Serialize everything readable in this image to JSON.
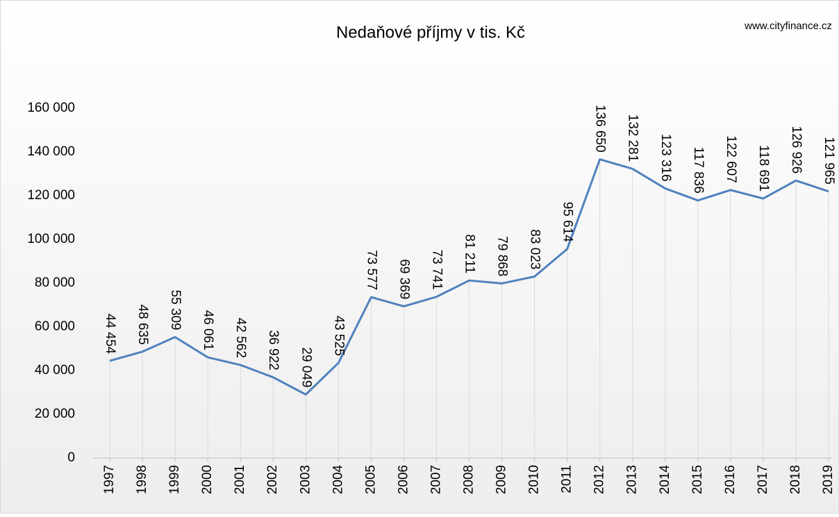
{
  "chart_data": {
    "type": "line",
    "title": "Nedaňové příjmy v tis. Kč",
    "annotation": "www.cityfinance.cz",
    "categories": [
      "1997",
      "1998",
      "1999",
      "2000",
      "2001",
      "2002",
      "2003",
      "2004",
      "2005",
      "2006",
      "2007",
      "2008",
      "2009",
      "2010",
      "2011",
      "2012",
      "2013",
      "2014",
      "2015",
      "2016",
      "2017",
      "2018",
      "2019"
    ],
    "series": [
      {
        "name": "Nedaňové příjmy",
        "color": "#4f81bd",
        "values": [
          44454,
          48635,
          55309,
          46061,
          42562,
          36922,
          29049,
          43525,
          73577,
          69369,
          73741,
          81211,
          79868,
          83023,
          95614,
          136650,
          132281,
          123316,
          117836,
          122607,
          118691,
          126926,
          121965
        ],
        "value_labels": [
          "44 454",
          "48 635",
          "55 309",
          "46 061",
          "42 562",
          "36 922",
          "29 049",
          "43 525",
          "73 577",
          "69 369",
          "73 741",
          "81 211",
          "79 868",
          "83 023",
          "95 614",
          "136 650",
          "132 281",
          "123 316",
          "117 836",
          "122 607",
          "118 691",
          "126 926",
          "121 965"
        ]
      }
    ],
    "ylim": [
      0,
      160000
    ],
    "yticks": [
      {
        "value": 0,
        "label": "0"
      },
      {
        "value": 20000,
        "label": "20 000"
      },
      {
        "value": 40000,
        "label": "40 000"
      },
      {
        "value": 60000,
        "label": "60 000"
      },
      {
        "value": 80000,
        "label": "80 000"
      },
      {
        "value": 100000,
        "label": "100 000"
      },
      {
        "value": 120000,
        "label": "120 000"
      },
      {
        "value": 140000,
        "label": "140 000"
      },
      {
        "value": 160000,
        "label": "160 000"
      }
    ],
    "drop_lines": true
  }
}
